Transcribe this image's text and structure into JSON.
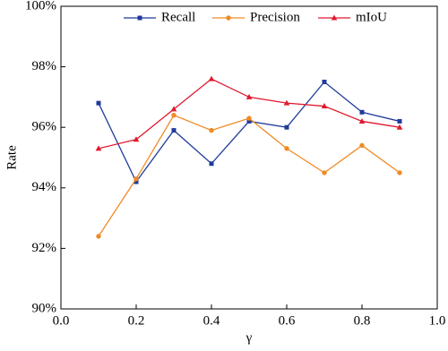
{
  "chart_data": {
    "type": "line",
    "x_label": "γ",
    "y_label": "Rate",
    "x": [
      0.1,
      0.2,
      0.3,
      0.4,
      0.5,
      0.6,
      0.7,
      0.8,
      0.9
    ],
    "series": [
      {
        "name": "Recall",
        "color": "#1f3b9b",
        "marker": "square",
        "values": [
          96.8,
          94.2,
          95.9,
          94.8,
          96.2,
          96.0,
          97.5,
          96.5,
          96.2
        ]
      },
      {
        "name": "Precision",
        "color": "#f08a24",
        "marker": "circle",
        "values": [
          92.4,
          94.3,
          96.4,
          95.9,
          96.3,
          95.3,
          94.5,
          95.4,
          94.5
        ]
      },
      {
        "name": "mIoU",
        "color": "#e0192f",
        "marker": "triangle",
        "values": [
          95.3,
          95.6,
          96.6,
          97.6,
          97.0,
          96.8,
          96.7,
          96.2,
          96.0
        ]
      }
    ],
    "xlim": [
      0,
      1
    ],
    "xticks": [
      {
        "value": 0,
        "label": "0.0"
      },
      0.2,
      0.4,
      0.6,
      0.8,
      {
        "value": 1,
        "label": "1.0"
      }
    ],
    "ylim": [
      90,
      100
    ],
    "yticks": [
      {
        "value": 90,
        "label": "90%"
      },
      {
        "value": 92,
        "label": "92%"
      },
      {
        "value": 94,
        "label": "94%"
      },
      {
        "value": 96,
        "label": "96%"
      },
      {
        "value": 98,
        "label": "98%"
      },
      {
        "value": 100,
        "label": "100%"
      }
    ],
    "grid": false,
    "legend": "top"
  }
}
